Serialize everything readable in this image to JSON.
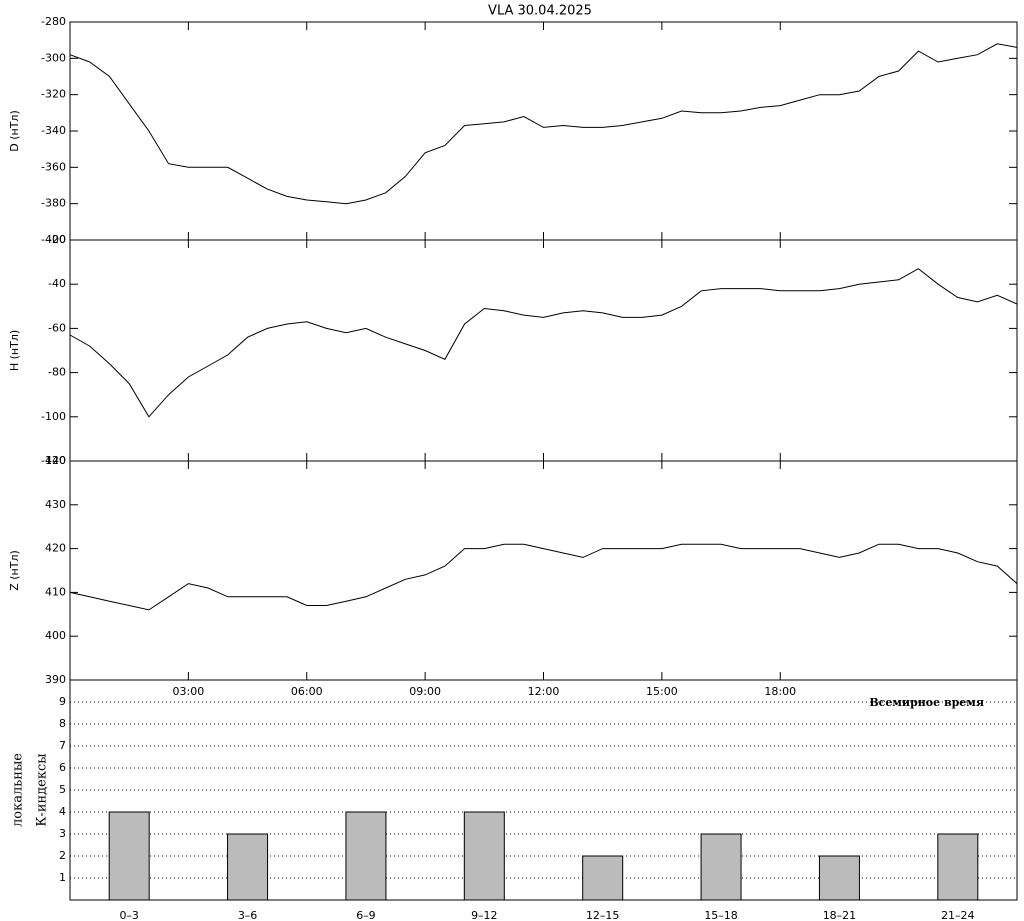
{
  "chart_data": [
    {
      "type": "line",
      "title": "VLA   30.04.2025",
      "ylabel": "D (нТл)",
      "color": "#000000",
      "xlim": [
        0,
        24
      ],
      "ylim": [
        -400,
        -280
      ],
      "yticks": [
        -280,
        -300,
        -320,
        -340,
        -360,
        -380,
        -400
      ],
      "x": [
        0,
        0.5,
        1,
        1.5,
        2,
        2.5,
        3,
        3.5,
        4,
        4.5,
        5,
        5.5,
        6,
        6.5,
        7,
        7.5,
        8,
        8.5,
        9,
        9.5,
        10,
        10.5,
        11,
        11.5,
        12,
        12.5,
        13,
        13.5,
        14,
        14.5,
        15,
        15.5,
        16,
        16.5,
        17,
        17.5,
        18,
        18.5,
        19,
        19.5,
        20,
        20.5,
        21,
        21.5,
        22,
        22.5,
        23,
        23.5,
        24
      ],
      "values": [
        -298,
        -302,
        -310,
        -325,
        -340,
        -358,
        -360,
        -360,
        -360,
        -366,
        -372,
        -376,
        -378,
        -379,
        -380,
        -378,
        -374,
        -365,
        -352,
        -348,
        -337,
        -336,
        -335,
        -332,
        -338,
        -337,
        -338,
        -338,
        -337,
        -335,
        -333,
        -329,
        -330,
        -330,
        -329,
        -327,
        -326,
        -323,
        -320,
        -320,
        -318,
        -310,
        -307,
        -296,
        -302,
        -300,
        -298,
        -292,
        -294
      ]
    },
    {
      "type": "line",
      "ylabel": "H (нТл)",
      "color": "#000000",
      "xlim": [
        0,
        24
      ],
      "ylim": [
        -120,
        -20
      ],
      "yticks": [
        -20,
        -40,
        -60,
        -80,
        -100,
        -120
      ],
      "x": [
        0,
        0.5,
        1,
        1.5,
        2,
        2.5,
        3,
        3.5,
        4,
        4.5,
        5,
        5.5,
        6,
        6.5,
        7,
        7.5,
        8,
        8.5,
        9,
        9.5,
        10,
        10.5,
        11,
        11.5,
        12,
        12.5,
        13,
        13.5,
        14,
        14.5,
        15,
        15.5,
        16,
        16.5,
        17,
        17.5,
        18,
        18.5,
        19,
        19.5,
        20,
        20.5,
        21,
        21.5,
        22,
        22.5,
        23,
        23.5,
        24
      ],
      "values": [
        -63,
        -68,
        -76,
        -85,
        -100,
        -90,
        -82,
        -77,
        -72,
        -64,
        -60,
        -58,
        -57,
        -60,
        -62,
        -60,
        -64,
        -67,
        -70,
        -74,
        -58,
        -51,
        -52,
        -54,
        -55,
        -53,
        -52,
        -53,
        -55,
        -55,
        -54,
        -50,
        -43,
        -42,
        -42,
        -42,
        -43,
        -43,
        -43,
        -42,
        -40,
        -39,
        -38,
        -33,
        -40,
        -46,
        -48,
        -45,
        -49
      ]
    },
    {
      "type": "line",
      "ylabel": "Z (нТл)",
      "xlabel": "Всемирное время",
      "color": "#000000",
      "xlim": [
        0,
        24
      ],
      "ylim": [
        390,
        440
      ],
      "yticks": [
        390,
        400,
        410,
        420,
        430,
        440
      ],
      "xticks": [
        {
          "value": 3,
          "label": "03:00"
        },
        {
          "value": 6,
          "label": "06:00"
        },
        {
          "value": 9,
          "label": "09:00"
        },
        {
          "value": 12,
          "label": "12:00"
        },
        {
          "value": 15,
          "label": "15:00"
        },
        {
          "value": 18,
          "label": "18:00"
        }
      ],
      "x": [
        0,
        0.5,
        1,
        1.5,
        2,
        2.5,
        3,
        3.5,
        4,
        4.5,
        5,
        5.5,
        6,
        6.5,
        7,
        7.5,
        8,
        8.5,
        9,
        9.5,
        10,
        10.5,
        11,
        11.5,
        12,
        12.5,
        13,
        13.5,
        14,
        14.5,
        15,
        15.5,
        16,
        16.5,
        17,
        17.5,
        18,
        18.5,
        19,
        19.5,
        20,
        20.5,
        21,
        21.5,
        22,
        22.5,
        23,
        23.5,
        24
      ],
      "values": [
        410,
        409,
        408,
        407,
        406,
        409,
        412,
        411,
        409,
        409,
        409,
        409,
        407,
        407,
        408,
        409,
        411,
        413,
        414,
        416,
        420,
        420,
        421,
        421,
        420,
        419,
        418,
        420,
        420,
        420,
        420,
        421,
        421,
        421,
        420,
        420,
        420,
        420,
        419,
        418,
        419,
        421,
        421,
        420,
        420,
        419,
        417,
        416,
        412
      ]
    },
    {
      "type": "bar",
      "ylabel": [
        "локальные",
        "К-индексы"
      ],
      "color": "#bbbbbb",
      "grid": true,
      "ylim": [
        0,
        10
      ],
      "yticks": [
        1,
        2,
        3,
        4,
        5,
        6,
        7,
        8,
        9
      ],
      "categories": [
        "0–3",
        "3–6",
        "6–9",
        "9–12",
        "12–15",
        "15–18",
        "18–21",
        "21–24"
      ],
      "values": [
        4,
        3,
        4,
        4,
        2,
        3,
        2,
        3
      ]
    }
  ]
}
